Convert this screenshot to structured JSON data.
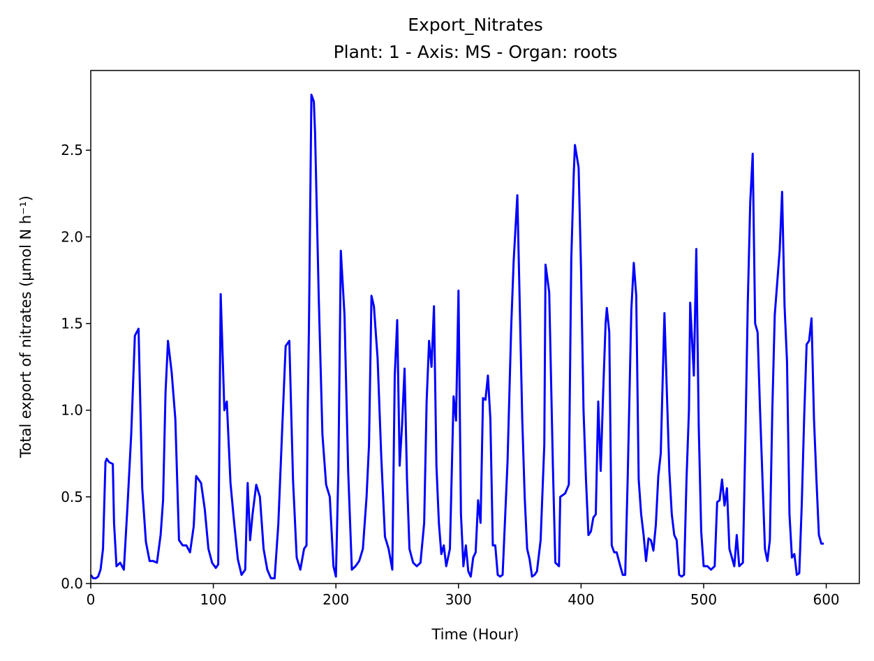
{
  "chart_data": {
    "type": "line",
    "title": "Export_Nitrates",
    "subtitle": "Plant: 1 - Axis: MS - Organ: roots",
    "x_label": "Time (Hour)",
    "y_label": "Total export of nitrates (µmol N h⁻¹)",
    "xlim": [
      0,
      627
    ],
    "ylim": [
      0,
      2.96
    ],
    "xticks": [
      0,
      100,
      200,
      300,
      400,
      500,
      600
    ],
    "yticks": [
      {
        "value": 0,
        "label": "0.0"
      },
      {
        "value": 0.5,
        "label": "0.5"
      },
      {
        "value": 1,
        "label": "1.0"
      },
      {
        "value": 1.5,
        "label": "1.5"
      },
      {
        "value": 2,
        "label": "2.0"
      },
      {
        "value": 2.5,
        "label": "2.5"
      }
    ],
    "grid": false,
    "series": [
      {
        "name": "Export_Nitrates",
        "color": "#0000ff",
        "x": [
          0,
          2,
          4,
          6,
          8,
          10,
          12,
          13,
          15,
          18,
          19,
          21,
          24,
          27,
          30,
          33,
          36,
          39,
          42,
          45,
          48,
          51,
          54,
          57,
          59,
          61,
          63,
          66,
          69,
          72,
          75,
          78,
          81,
          84,
          86,
          88,
          90,
          93,
          96,
          99,
          102,
          104,
          106,
          109,
          111,
          114,
          117,
          120,
          123,
          126,
          128,
          130,
          132,
          135,
          138,
          141,
          144,
          147,
          150,
          153,
          156,
          159,
          162,
          165,
          168,
          171,
          174,
          176,
          177,
          178,
          180,
          182,
          183,
          186,
          189,
          192,
          195,
          198,
          200,
          202,
          204,
          207,
          210,
          213,
          216,
          219,
          222,
          225,
          227,
          229,
          231,
          234,
          237,
          240,
          243,
          246,
          248,
          250,
          252,
          254,
          256,
          258,
          260,
          263,
          266,
          269,
          272,
          274,
          276,
          278,
          280,
          282,
          284,
          286,
          288,
          290,
          293,
          296,
          298,
          300,
          302,
          304,
          306,
          308,
          310,
          312,
          314,
          316,
          318,
          320,
          322,
          324,
          326,
          328,
          330,
          332,
          334,
          336,
          340,
          343,
          345,
          348,
          350,
          352,
          354,
          356,
          358,
          360,
          362,
          364,
          367,
          370,
          371,
          374,
          377,
          379,
          382,
          383,
          387,
          390,
          392,
          394,
          395,
          398,
          400,
          402,
          404,
          406,
          408,
          410,
          412,
          414,
          416,
          418,
          420,
          421,
          423,
          425,
          427,
          429,
          432,
          434,
          436,
          438,
          441,
          443,
          445,
          447,
          449,
          451,
          453,
          455,
          457,
          459,
          461,
          463,
          465,
          468,
          470,
          472,
          474,
          476,
          478,
          480,
          482,
          484,
          486,
          488,
          489,
          492,
          494,
          496,
          498,
          500,
          503,
          506,
          509,
          511,
          513,
          515,
          517,
          519,
          521,
          523,
          525,
          527,
          529,
          532,
          534,
          536,
          538,
          540,
          542,
          544,
          546,
          548,
          550,
          552,
          554,
          556,
          558,
          562,
          564,
          566,
          568,
          570,
          572,
          574,
          576,
          578,
          580,
          582,
          584,
          586,
          588,
          590,
          592,
          594,
          596,
          598
        ],
        "values": [
          0.05,
          0.03,
          0.03,
          0.04,
          0.08,
          0.2,
          0.7,
          0.72,
          0.7,
          0.69,
          0.35,
          0.1,
          0.12,
          0.08,
          0.45,
          0.86,
          1.43,
          1.47,
          0.55,
          0.24,
          0.13,
          0.13,
          0.12,
          0.28,
          0.48,
          1.1,
          1.4,
          1.22,
          0.95,
          0.25,
          0.22,
          0.22,
          0.18,
          0.33,
          0.62,
          0.6,
          0.58,
          0.43,
          0.2,
          0.12,
          0.09,
          0.11,
          1.67,
          1.0,
          1.05,
          0.58,
          0.35,
          0.14,
          0.05,
          0.08,
          0.58,
          0.25,
          0.4,
          0.57,
          0.5,
          0.2,
          0.08,
          0.03,
          0.03,
          0.34,
          0.86,
          1.37,
          1.4,
          0.6,
          0.15,
          0.08,
          0.2,
          0.22,
          1.0,
          1.48,
          2.82,
          2.78,
          2.6,
          1.65,
          0.86,
          0.57,
          0.5,
          0.1,
          0.04,
          0.65,
          1.92,
          1.55,
          0.65,
          0.08,
          0.1,
          0.13,
          0.2,
          0.5,
          0.8,
          1.66,
          1.6,
          1.3,
          0.73,
          0.27,
          0.2,
          0.08,
          1.2,
          1.52,
          0.68,
          0.92,
          1.24,
          0.6,
          0.2,
          0.12,
          0.1,
          0.12,
          0.35,
          1.05,
          1.4,
          1.25,
          1.6,
          0.68,
          0.35,
          0.17,
          0.22,
          0.1,
          0.2,
          1.08,
          0.94,
          1.69,
          0.4,
          0.1,
          0.22,
          0.07,
          0.04,
          0.15,
          0.18,
          0.48,
          0.35,
          1.07,
          1.06,
          1.2,
          0.95,
          0.22,
          0.22,
          0.05,
          0.04,
          0.05,
          0.7,
          1.48,
          1.86,
          2.24,
          1.6,
          0.95,
          0.5,
          0.2,
          0.14,
          0.04,
          0.05,
          0.07,
          0.25,
          0.8,
          1.84,
          1.68,
          0.68,
          0.12,
          0.1,
          0.5,
          0.52,
          0.57,
          1.87,
          2.36,
          2.53,
          2.4,
          1.8,
          1.0,
          0.6,
          0.28,
          0.3,
          0.38,
          0.4,
          1.05,
          0.65,
          1.1,
          1.5,
          1.59,
          1.45,
          0.22,
          0.18,
          0.18,
          0.1,
          0.05,
          0.05,
          0.6,
          1.58,
          1.85,
          1.66,
          0.6,
          0.4,
          0.28,
          0.13,
          0.26,
          0.25,
          0.19,
          0.34,
          0.62,
          0.75,
          1.56,
          1.1,
          0.65,
          0.4,
          0.28,
          0.25,
          0.05,
          0.04,
          0.05,
          0.6,
          1.0,
          1.62,
          1.2,
          1.93,
          0.9,
          0.3,
          0.1,
          0.1,
          0.08,
          0.1,
          0.47,
          0.48,
          0.6,
          0.45,
          0.55,
          0.2,
          0.15,
          0.1,
          0.28,
          0.1,
          0.12,
          0.82,
          1.62,
          2.2,
          2.48,
          1.5,
          1.45,
          1.0,
          0.6,
          0.2,
          0.13,
          0.25,
          1.0,
          1.55,
          1.92,
          2.26,
          1.6,
          1.28,
          0.4,
          0.15,
          0.17,
          0.05,
          0.06,
          0.45,
          0.96,
          1.38,
          1.4,
          1.53,
          0.95,
          0.6,
          0.28,
          0.23,
          0.23
        ]
      }
    ]
  }
}
